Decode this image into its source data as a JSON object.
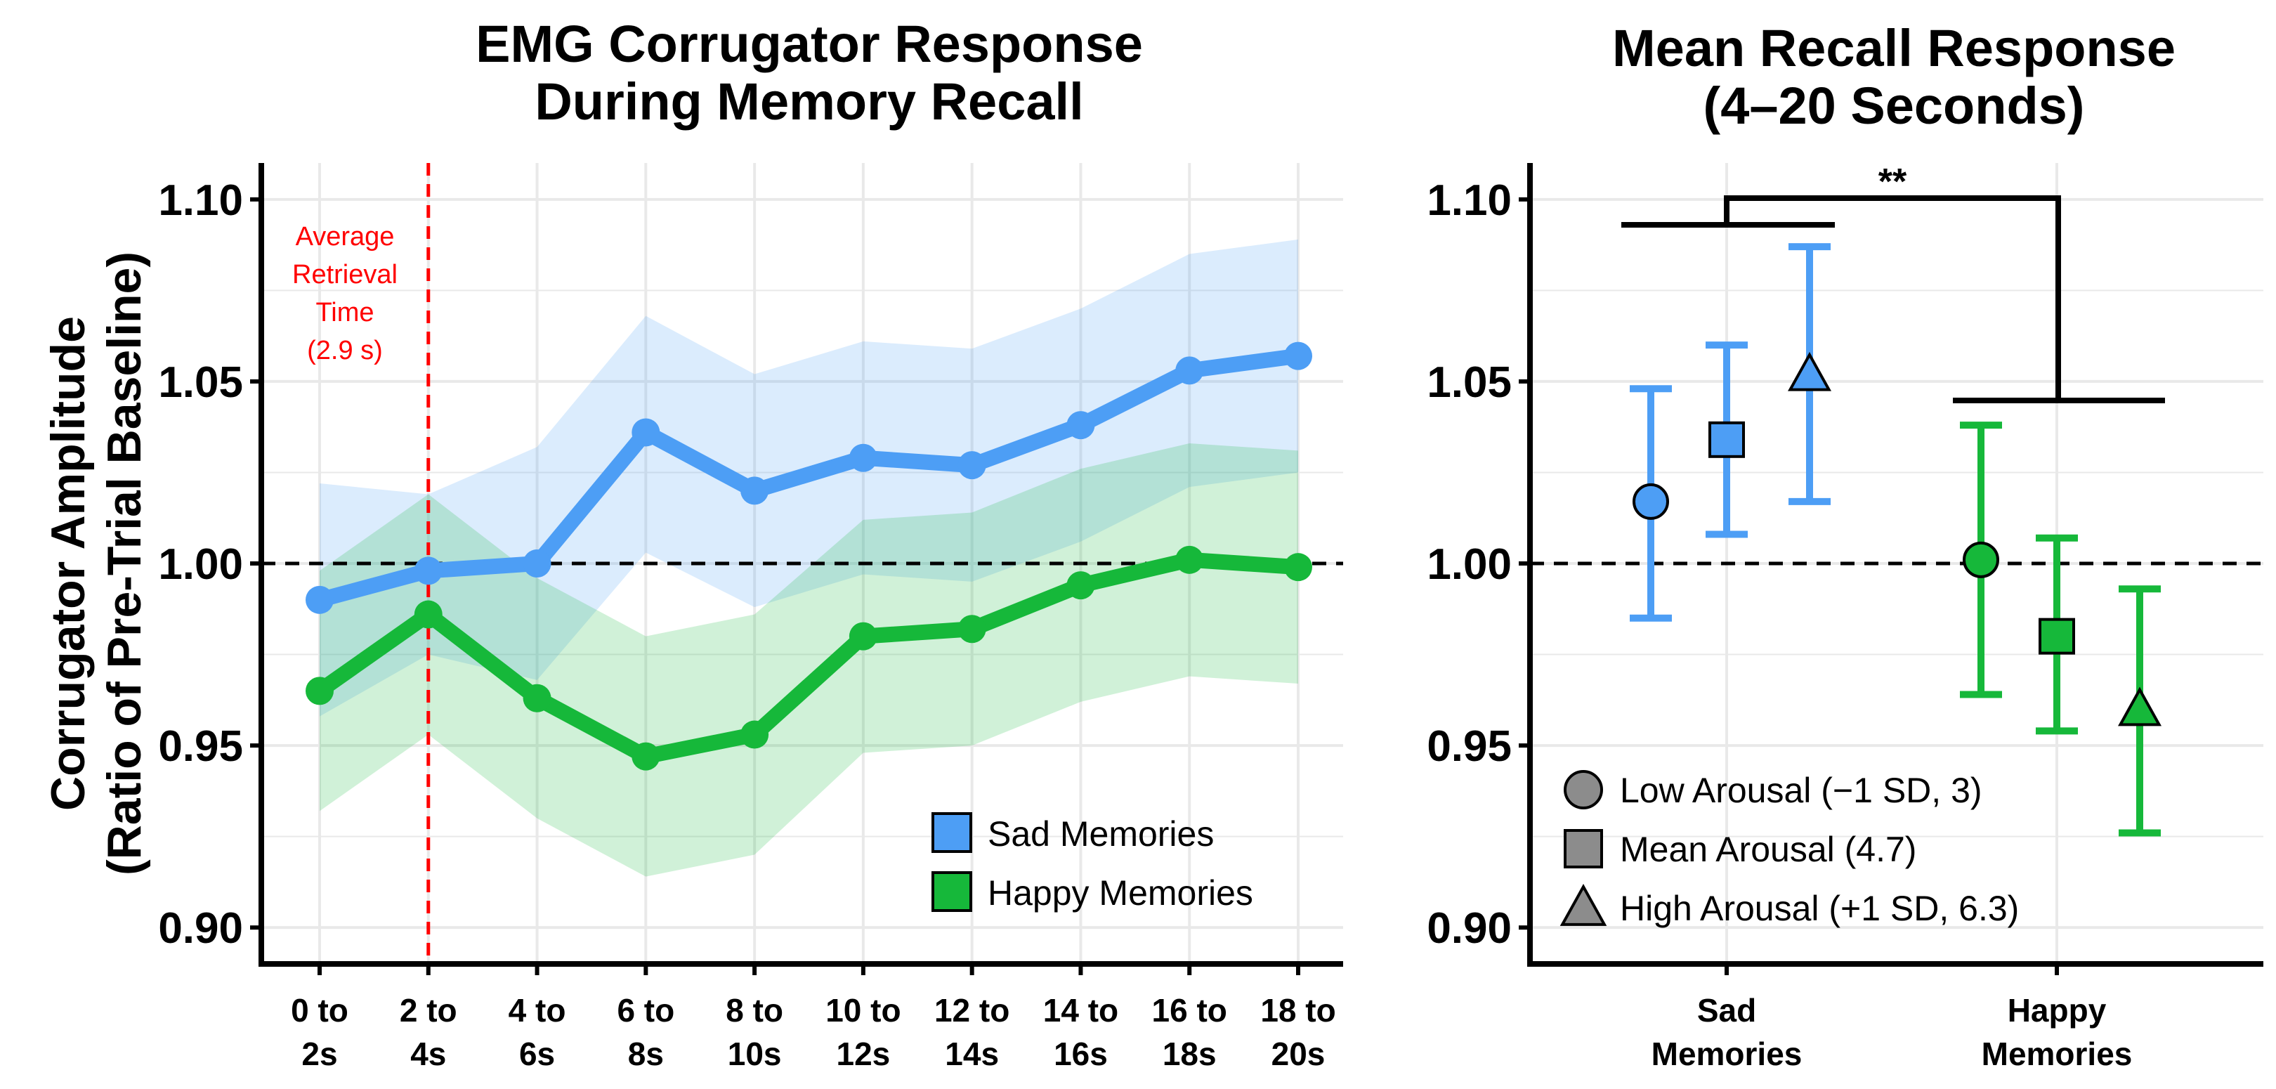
{
  "colors": {
    "sad": "#4d9ef5",
    "happy": "#16b83a",
    "sad_band": "#d8e8fb",
    "happy_band": "#d5efd6",
    "retrieval": "#ff0000",
    "grid": "#e9e9e9"
  },
  "chart_data": [
    {
      "type": "line",
      "title_lines": [
        "EMG Corrugator Response",
        "During Memory Recall"
      ],
      "ylabel_lines": [
        "Corrugator Amplitude",
        "(Ratio of Pre-Trial Baseline)"
      ],
      "xlabel": "",
      "categories": [
        [
          "0 to",
          "2s"
        ],
        [
          "2 to",
          "4s"
        ],
        [
          "4 to",
          "6s"
        ],
        [
          "6 to",
          "8s"
        ],
        [
          "8 to",
          "10s"
        ],
        [
          "10 to",
          "12s"
        ],
        [
          "12 to",
          "14s"
        ],
        [
          "14 to",
          "16s"
        ],
        [
          "16 to",
          "18s"
        ],
        [
          "18 to",
          "20s"
        ]
      ],
      "ylim": [
        0.89,
        1.11
      ],
      "yticks": [
        "0.90",
        "0.95",
        "1.00",
        "1.05",
        "1.10"
      ],
      "reference_line": 1.0,
      "retrieval_marker": {
        "category_index": 1,
        "label_lines": [
          "Average",
          "Retrieval",
          "Time",
          "(2.9 s)"
        ]
      },
      "series": [
        {
          "name": "Sad Memories",
          "color_key": "sad",
          "values": [
            0.99,
            0.998,
            1.0,
            1.036,
            1.02,
            1.029,
            1.027,
            1.038,
            1.053,
            1.057
          ],
          "ci_lower": [
            0.958,
            0.975,
            0.968,
            1.003,
            0.988,
            0.997,
            0.995,
            1.006,
            1.021,
            1.025
          ],
          "ci_upper": [
            1.022,
            1.019,
            1.032,
            1.068,
            1.052,
            1.061,
            1.059,
            1.07,
            1.085,
            1.089
          ]
        },
        {
          "name": "Happy Memories",
          "color_key": "happy",
          "values": [
            0.965,
            0.986,
            0.963,
            0.947,
            0.953,
            0.98,
            0.982,
            0.994,
            1.001,
            0.999
          ],
          "ci_lower": [
            0.932,
            0.953,
            0.93,
            0.914,
            0.92,
            0.948,
            0.95,
            0.962,
            0.969,
            0.967
          ],
          "ci_upper": [
            0.998,
            1.019,
            0.996,
            0.98,
            0.986,
            1.012,
            1.014,
            1.026,
            1.033,
            1.031
          ]
        }
      ],
      "legend": {
        "position": "bottom-right",
        "entries": [
          "Sad Memories",
          "Happy Memories"
        ]
      }
    },
    {
      "type": "scatter",
      "subtype": "point-with-errorbars",
      "title_lines": [
        "Mean Recall Response",
        "(4–20 Seconds)"
      ],
      "ylabel": "",
      "categories": [
        [
          "Sad",
          "Memories"
        ],
        [
          "Happy",
          "Memories"
        ]
      ],
      "ylim": [
        0.89,
        1.11
      ],
      "yticks": [
        "0.90",
        "0.95",
        "1.00",
        "1.05",
        "1.10"
      ],
      "reference_line": 1.0,
      "groups": [
        {
          "category": "Sad Memories",
          "color_key": "sad",
          "points": [
            {
              "level": "Low Arousal",
              "shape": "circle",
              "value": 1.017,
              "lower": 0.985,
              "upper": 1.048
            },
            {
              "level": "Mean Arousal",
              "shape": "square",
              "value": 1.034,
              "lower": 1.008,
              "upper": 1.06
            },
            {
              "level": "High Arousal",
              "shape": "triangle",
              "value": 1.052,
              "lower": 1.017,
              "upper": 1.087
            }
          ]
        },
        {
          "category": "Happy Memories",
          "color_key": "happy",
          "points": [
            {
              "level": "Low Arousal",
              "shape": "circle",
              "value": 1.001,
              "lower": 0.964,
              "upper": 1.038
            },
            {
              "level": "Mean Arousal",
              "shape": "square",
              "value": 0.98,
              "lower": 0.954,
              "upper": 1.007
            },
            {
              "level": "High Arousal",
              "shape": "triangle",
              "value": 0.96,
              "lower": 0.926,
              "upper": 0.993
            }
          ]
        }
      ],
      "significance": {
        "label": "**",
        "between": [
          "Sad Memories",
          "Happy Memories"
        ]
      },
      "legend": {
        "position": "bottom-left",
        "entries": [
          {
            "shape": "circle",
            "label": "Low Arousal (−1 SD, 3)"
          },
          {
            "shape": "square",
            "label": "Mean Arousal (4.7)"
          },
          {
            "shape": "triangle",
            "label": "High Arousal (+1 SD, 6.3)"
          }
        ]
      }
    }
  ]
}
